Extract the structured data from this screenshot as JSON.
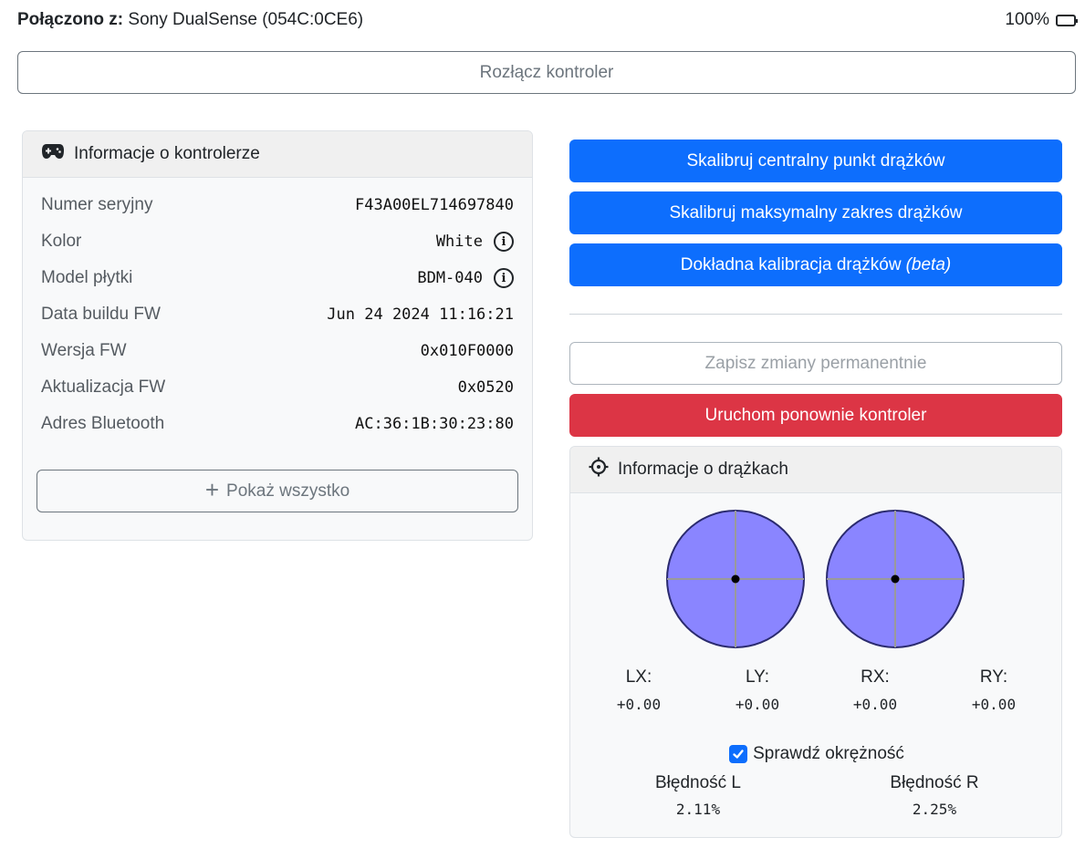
{
  "header": {
    "connected_label": "Połączono z:",
    "device_name": "Sony DualSense (054C:0CE6)",
    "battery": "100%"
  },
  "disconnect_label": "Rozłącz kontroler",
  "info_card": {
    "title": "Informacje o kontrolerze",
    "rows": [
      {
        "label": "Numer seryjny",
        "value": "F43A00EL714697840"
      },
      {
        "label": "Kolor",
        "value": "White"
      },
      {
        "label": "Model płytki",
        "value": "BDM-040"
      },
      {
        "label": "Data buildu FW",
        "value": "Jun 24 2024 11:16:21"
      },
      {
        "label": "Wersja FW",
        "value": "0x010F0000"
      },
      {
        "label": "Aktualizacja FW",
        "value": "0x0520"
      },
      {
        "label": "Adres Bluetooth",
        "value": "AC:36:1B:30:23:80"
      }
    ],
    "show_all_label": "Pokaż wszystko"
  },
  "actions": {
    "calibrate_center": "Skalibruj centralny punkt drążków",
    "calibrate_range": "Skalibruj maksymalny zakres drążków",
    "fine_calibration": "Dokładna kalibracja drążków",
    "fine_calibration_tag": "(beta)",
    "save_permanent": "Zapisz zmiany permanentnie",
    "restart": "Uruchom ponownie kontroler"
  },
  "stick_card": {
    "title": "Informacje o drążkach",
    "axes": [
      {
        "name": "LX:",
        "value": "+0.00"
      },
      {
        "name": "LY:",
        "value": "+0.00"
      },
      {
        "name": "RX:",
        "value": "+0.00"
      },
      {
        "name": "RY:",
        "value": "+0.00"
      }
    ],
    "check_circularity_label": "Sprawdź okrężność",
    "check_circularity_checked": true,
    "errors": [
      {
        "name": "Błędność L",
        "value": "2.11%"
      },
      {
        "name": "Błędność R",
        "value": "2.25%"
      }
    ]
  },
  "colors": {
    "primary": "#0d6efd",
    "danger": "#dc3545",
    "stick_fill": "#8080ff",
    "stick_outline": "#2a2a6e"
  }
}
